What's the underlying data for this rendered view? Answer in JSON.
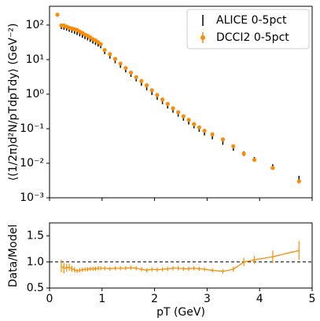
{
  "chart_data": [
    {
      "type": "scatter",
      "log_y": true,
      "ylabel": "⟨(1/2π)d²N/pTdpTdy⟩ (GeV⁻²)",
      "xlim": [
        0,
        5
      ],
      "ylim": [
        0.001,
        350
      ],
      "yticks": [
        {
          "value": 0.001,
          "label": "10⁻³"
        },
        {
          "value": 0.01,
          "label": "10⁻²"
        },
        {
          "value": 0.1,
          "label": "10⁻¹"
        },
        {
          "value": 1,
          "label": "10⁰"
        },
        {
          "value": 10,
          "label": "10¹"
        },
        {
          "value": 100,
          "label": "10²"
        }
      ],
      "legend": "upper right",
      "series": [
        {
          "name": "ALICE 0-5pct",
          "color": "#000000",
          "x": [
            0.225,
            0.275,
            0.325,
            0.375,
            0.425,
            0.475,
            0.525,
            0.575,
            0.625,
            0.675,
            0.725,
            0.775,
            0.825,
            0.875,
            0.925,
            0.975,
            1.05,
            1.15,
            1.25,
            1.35,
            1.45,
            1.55,
            1.65,
            1.75,
            1.85,
            1.95,
            2.05,
            2.15,
            2.25,
            2.35,
            2.45,
            2.55,
            2.65,
            2.75,
            2.85,
            2.95,
            3.1,
            3.3,
            3.5,
            3.7,
            3.9,
            4.25,
            4.75
          ],
          "values": [
            90,
            85,
            80,
            75,
            70,
            65,
            60,
            55,
            50,
            46,
            42,
            38,
            34,
            31,
            28,
            25,
            17,
            12.5,
            9.2,
            6.8,
            5.0,
            3.7,
            2.75,
            2.05,
            1.5,
            1.1,
            0.8,
            0.6,
            0.45,
            0.34,
            0.26,
            0.2,
            0.155,
            0.12,
            0.095,
            0.075,
            0.058,
            0.04,
            0.027,
            0.019,
            0.013,
            0.008,
            0.0037
          ]
        },
        {
          "name": "DCCI2 0-5pct",
          "color": "#ff8c00",
          "x": [
            0.15,
            0.225,
            0.275,
            0.325,
            0.375,
            0.425,
            0.475,
            0.525,
            0.575,
            0.625,
            0.675,
            0.725,
            0.775,
            0.825,
            0.875,
            0.925,
            0.975,
            1.05,
            1.15,
            1.25,
            1.35,
            1.45,
            1.55,
            1.65,
            1.75,
            1.85,
            1.95,
            2.05,
            2.15,
            2.25,
            2.35,
            2.45,
            2.55,
            2.65,
            2.75,
            2.85,
            2.95,
            3.1,
            3.3,
            3.5,
            3.7,
            3.9,
            4.25,
            4.75
          ],
          "values": [
            200,
            98,
            97,
            90,
            83,
            80,
            76,
            72,
            65,
            59,
            53,
            49,
            44,
            39,
            36,
            32,
            28,
            19,
            14.4,
            10.5,
            7.7,
            5.7,
            4.2,
            3.1,
            2.4,
            1.8,
            1.3,
            0.94,
            0.7,
            0.52,
            0.39,
            0.3,
            0.23,
            0.18,
            0.136,
            0.109,
            0.087,
            0.069,
            0.049,
            0.031,
            0.019,
            0.0125,
            0.0073,
            0.003
          ]
        }
      ]
    },
    {
      "type": "line",
      "xlabel": "pT (GeV)",
      "ylabel": "Data/Model",
      "xlim": [
        0,
        5
      ],
      "ylim": [
        0.5,
        1.75
      ],
      "xticks": [
        0,
        1,
        2,
        3,
        4,
        5
      ],
      "yticks": [
        0.5,
        {
          "value": 1,
          "label": "1.0"
        },
        1.5
      ],
      "reference_line": 1,
      "series": [
        {
          "color": "#ff8c00",
          "x": [
            0.225,
            0.275,
            0.325,
            0.375,
            0.425,
            0.475,
            0.525,
            0.575,
            0.625,
            0.675,
            0.725,
            0.775,
            0.825,
            0.875,
            0.925,
            0.975,
            1.05,
            1.15,
            1.25,
            1.35,
            1.45,
            1.55,
            1.65,
            1.75,
            1.85,
            1.95,
            2.05,
            2.15,
            2.25,
            2.35,
            2.45,
            2.55,
            2.65,
            2.75,
            2.85,
            2.95,
            3.1,
            3.3,
            3.5,
            3.7,
            3.9,
            4.25,
            4.75
          ],
          "values": [
            0.92,
            0.88,
            0.89,
            0.9,
            0.87,
            0.85,
            0.83,
            0.84,
            0.85,
            0.86,
            0.86,
            0.87,
            0.87,
            0.87,
            0.88,
            0.88,
            0.88,
            0.87,
            0.88,
            0.88,
            0.88,
            0.89,
            0.88,
            0.86,
            0.84,
            0.86,
            0.85,
            0.86,
            0.87,
            0.88,
            0.88,
            0.87,
            0.87,
            0.88,
            0.87,
            0.86,
            0.84,
            0.82,
            0.86,
            1.0,
            1.04,
            1.1,
            1.22
          ],
          "errors": [
            0.12,
            0.1,
            0.08,
            0.07,
            0.06,
            0.05,
            0.04,
            0.04,
            0.04,
            0.04,
            0.04,
            0.04,
            0.04,
            0.04,
            0.04,
            0.04,
            0.04,
            0.04,
            0.04,
            0.04,
            0.04,
            0.04,
            0.04,
            0.04,
            0.04,
            0.04,
            0.04,
            0.04,
            0.04,
            0.04,
            0.04,
            0.04,
            0.04,
            0.04,
            0.04,
            0.04,
            0.04,
            0.04,
            0.05,
            0.08,
            0.08,
            0.12,
            0.18
          ]
        }
      ]
    }
  ]
}
